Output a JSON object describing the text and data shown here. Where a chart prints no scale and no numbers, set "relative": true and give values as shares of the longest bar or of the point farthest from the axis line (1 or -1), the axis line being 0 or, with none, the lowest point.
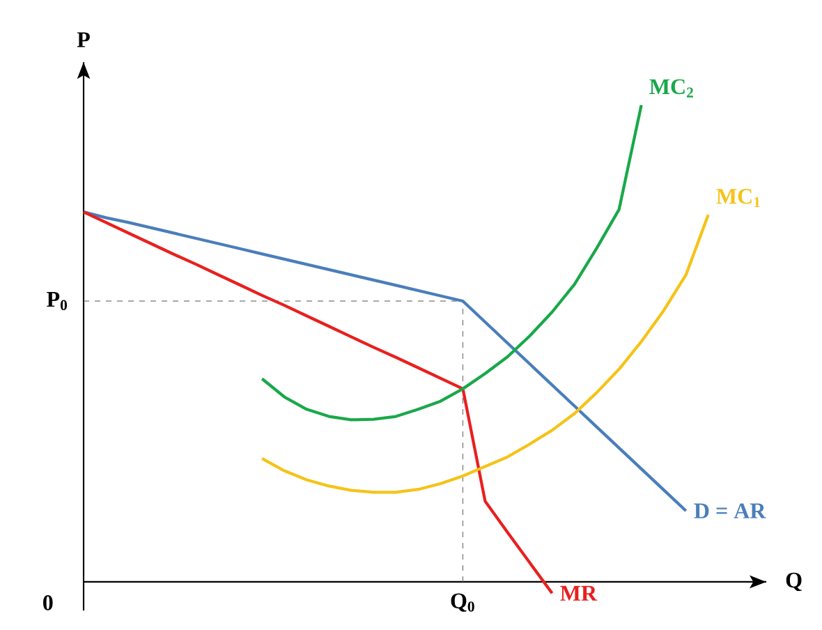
{
  "chart_data": {
    "type": "line",
    "xlabel": "Q",
    "ylabel": "P",
    "relative": true,
    "categories": [
      null,
      null,
      null,
      null,
      null,
      null,
      null,
      null,
      null,
      null,
      null,
      null,
      null,
      null,
      null,
      null,
      null,
      null,
      null,
      null,
      null,
      null,
      null,
      null,
      null,
      null,
      null,
      null,
      null,
      null,
      null
    ],
    "annotations": [
      "Q$_{0}$",
      "0"
    ],
    "ref_lines": [
      {
        "axis": "y",
        "value": 0.589,
        "label": "P$_{0}$",
        "line_style": "dashed",
        "color": "#555555"
      }
    ],
    "series": [
      {
        "name": "D = AR",
        "color": "#4a7ebb",
        "values": [
          0.776,
          0.764,
          0.754,
          0.743,
          0.732,
          0.721,
          0.71,
          0.699,
          0.688,
          0.677,
          0.666,
          0.655,
          0.644,
          0.633,
          0.622,
          0.611,
          0.6,
          0.589,
          0.545,
          0.501,
          0.457,
          0.413,
          0.369,
          0.325,
          0.281,
          0.237,
          0.193,
          0.149,
          null,
          null,
          null
        ]
      },
      {
        "name": "MR",
        "color": "#e8201f",
        "values": [
          0.776,
          0.754,
          0.732,
          0.71,
          0.688,
          0.667,
          0.645,
          0.623,
          0.601,
          0.58,
          0.558,
          0.536,
          0.514,
          0.492,
          0.471,
          0.449,
          0.427,
          0.405,
          0.169,
          0.104,
          0.04,
          -0.024,
          null,
          null,
          null,
          null,
          null,
          null,
          null,
          null,
          null
        ]
      },
      {
        "name": "MC$_{2}$",
        "color": "#1aa84a",
        "values": [
          null,
          null,
          null,
          null,
          null,
          null,
          null,
          null,
          0.426,
          0.388,
          0.362,
          0.347,
          0.34,
          0.341,
          0.347,
          0.362,
          0.379,
          0.405,
          0.437,
          0.472,
          0.516,
          0.566,
          0.624,
          0.7,
          0.781,
          1,
          null,
          null,
          null,
          null,
          null
        ]
      },
      {
        "name": "MC$_{1}$",
        "color": "#f5c318",
        "values": [
          null,
          null,
          null,
          null,
          null,
          null,
          null,
          null,
          0.259,
          0.233,
          0.214,
          0.201,
          0.192,
          0.188,
          0.188,
          0.194,
          0.206,
          0.222,
          0.242,
          0.262,
          0.289,
          0.318,
          0.353,
          0.397,
          0.446,
          0.504,
          0.569,
          0.644,
          0.77,
          null,
          null
        ]
      }
    ]
  }
}
